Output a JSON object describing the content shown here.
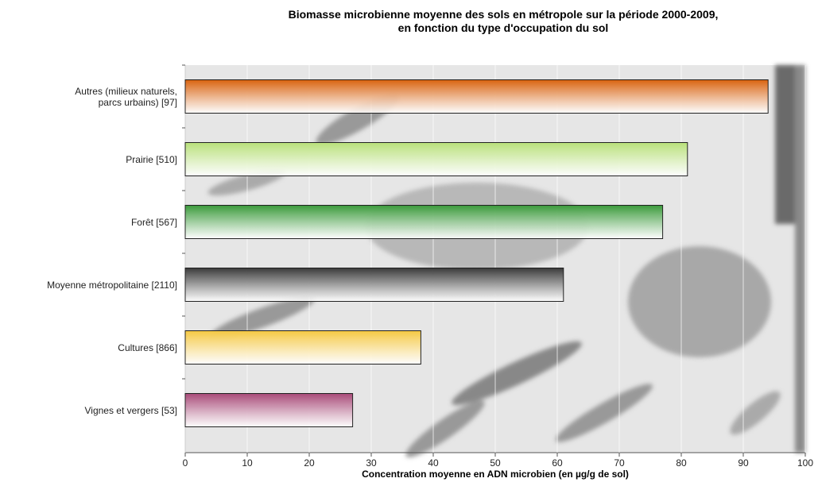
{
  "chart_data": {
    "type": "barh",
    "title": "Biomasse microbienne moyenne des sols en métropole sur la période 2000-2009,\nen fonction du type d'occupation du sol",
    "x_label": "Concentration moyenne en ADN microbien (en µg/g de sol)",
    "categories": [
      "Autres (milieux naturels,\nparcs urbains) [97]",
      "Prairie [510]",
      "Forêt [567]",
      "Moyenne métropolitaine [2110]",
      "Cultures [866]",
      "Vignes et vergers [53]"
    ],
    "values": [
      94,
      81,
      77,
      61,
      38,
      27
    ],
    "colors": [
      "#d9630f",
      "#b8e07a",
      "#3a9a3a",
      "#3a3a3a",
      "#f5c842",
      "#a84a78"
    ],
    "xlim": [
      0,
      100
    ],
    "xticks": [
      0,
      10,
      20,
      30,
      40,
      50,
      60,
      70,
      80,
      90,
      100
    ],
    "grid": true
  }
}
